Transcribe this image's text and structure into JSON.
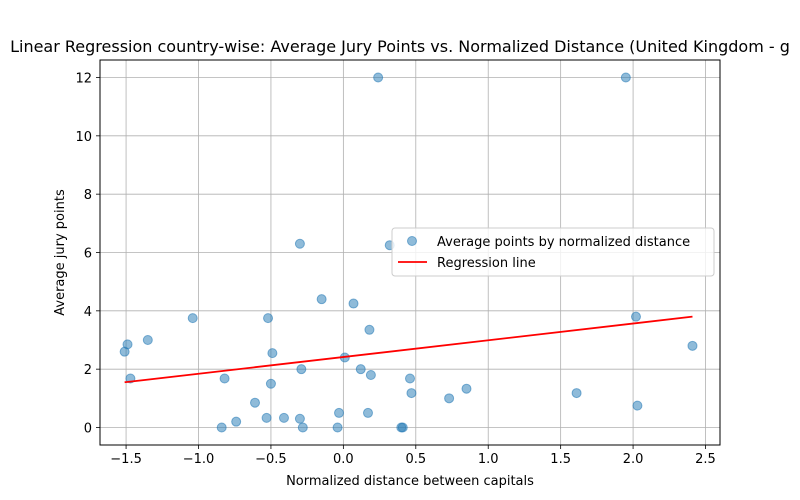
{
  "chart_data": {
    "type": "scatter",
    "title": "Linear Regression country-wise: Average Jury Points vs. Normalized Distance (United Kingdom - g",
    "xlabel": "Normalized distance between capitals",
    "ylabel": "Average jury points",
    "xlim": [
      -1.68,
      2.6
    ],
    "ylim": [
      -0.6,
      12.6
    ],
    "xticks": [
      -1.5,
      -1.0,
      -0.5,
      0.0,
      0.5,
      1.0,
      1.5,
      2.0,
      2.5
    ],
    "xtick_labels": [
      "−1.5",
      "−1.0",
      "−0.5",
      "0.0",
      "0.5",
      "1.0",
      "1.5",
      "2.0",
      "2.5"
    ],
    "yticks": [
      0,
      2,
      4,
      6,
      8,
      10,
      12
    ],
    "ytick_labels": [
      "0",
      "2",
      "4",
      "6",
      "8",
      "10",
      "12"
    ],
    "grid": true,
    "legend_position": "center-right",
    "series": [
      {
        "name": "Average points by normalized distance",
        "kind": "scatter",
        "color": "#1f77b4",
        "points": [
          [
            -1.51,
            2.6
          ],
          [
            -1.49,
            2.85
          ],
          [
            -1.47,
            1.68
          ],
          [
            -1.35,
            3.0
          ],
          [
            -1.04,
            3.75
          ],
          [
            -0.84,
            0.0
          ],
          [
            -0.82,
            1.68
          ],
          [
            -0.74,
            0.2
          ],
          [
            -0.61,
            0.85
          ],
          [
            -0.53,
            0.33
          ],
          [
            -0.52,
            3.75
          ],
          [
            -0.5,
            1.5
          ],
          [
            -0.49,
            2.55
          ],
          [
            -0.41,
            0.33
          ],
          [
            -0.3,
            0.3
          ],
          [
            -0.3,
            6.3
          ],
          [
            -0.29,
            2.0
          ],
          [
            -0.28,
            0.0
          ],
          [
            -0.15,
            4.4
          ],
          [
            -0.04,
            0.0
          ],
          [
            -0.03,
            0.5
          ],
          [
            0.01,
            2.4
          ],
          [
            0.07,
            4.25
          ],
          [
            0.12,
            2.0
          ],
          [
            0.17,
            0.5
          ],
          [
            0.18,
            3.35
          ],
          [
            0.19,
            1.8
          ],
          [
            0.24,
            12.0
          ],
          [
            0.32,
            6.25
          ],
          [
            0.4,
            0.0
          ],
          [
            0.41,
            0.0
          ],
          [
            0.46,
            1.68
          ],
          [
            0.47,
            1.18
          ],
          [
            0.73,
            1.0
          ],
          [
            0.85,
            1.33
          ],
          [
            1.61,
            1.18
          ],
          [
            1.95,
            12.0
          ],
          [
            2.02,
            3.8
          ],
          [
            2.03,
            0.75
          ],
          [
            2.41,
            2.8
          ]
        ]
      },
      {
        "name": "Regression line",
        "kind": "line",
        "color": "#ff0000",
        "x": [
          -1.51,
          2.41
        ],
        "y": [
          1.55,
          3.8
        ]
      }
    ]
  }
}
